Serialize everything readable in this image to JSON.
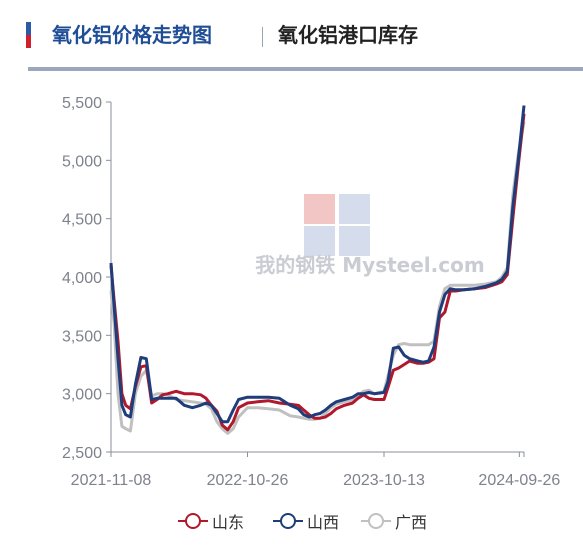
{
  "header": {
    "tab_active": "氧化铝价格走势图",
    "tab_current": "氧化铝港口库存",
    "accent_top_color": "#2b5aa6",
    "accent_bottom_color": "#d0202e",
    "active_tab_color": "#1f4e96",
    "rule_color": "#9aa7bd"
  },
  "watermark": {
    "brand": "我的钢铁 Mysteel.com"
  },
  "chart_data": {
    "type": "line",
    "x_tick_labels": [
      "2021-11-08",
      "2022-10-26",
      "2023-10-13",
      "2024-09-26"
    ],
    "x_range": [
      "2021-11-08",
      "2024-10-08"
    ],
    "y_tick_labels": [
      "2,500",
      "3,000",
      "3,500",
      "4,000",
      "4,500",
      "5,000",
      "5,500"
    ],
    "ylim": [
      2500,
      5500
    ],
    "grid": "none",
    "legend_position": "bottom-center",
    "series": [
      {
        "name": "山东",
        "color": "#b2182b",
        "points": [
          [
            "2021-11-08",
            4100
          ],
          [
            "2021-11-16",
            3800
          ],
          [
            "2021-11-26",
            3450
          ],
          [
            "2021-12-06",
            3000
          ],
          [
            "2021-12-16",
            2900
          ],
          [
            "2021-12-28",
            2870
          ],
          [
            "2022-01-10",
            3060
          ],
          [
            "2022-01-24",
            3230
          ],
          [
            "2022-02-07",
            3240
          ],
          [
            "2022-02-21",
            2920
          ],
          [
            "2022-03-07",
            2950
          ],
          [
            "2022-03-21",
            2990
          ],
          [
            "2022-04-04",
            3000
          ],
          [
            "2022-04-25",
            3020
          ],
          [
            "2022-05-16",
            3000
          ],
          [
            "2022-06-06",
            3000
          ],
          [
            "2022-06-27",
            2990
          ],
          [
            "2022-07-11",
            2960
          ],
          [
            "2022-07-25",
            2900
          ],
          [
            "2022-08-08",
            2850
          ],
          [
            "2022-08-22",
            2730
          ],
          [
            "2022-09-05",
            2690
          ],
          [
            "2022-09-19",
            2760
          ],
          [
            "2022-10-03",
            2880
          ],
          [
            "2022-10-26",
            2920
          ],
          [
            "2022-11-21",
            2930
          ],
          [
            "2022-12-19",
            2940
          ],
          [
            "2023-01-16",
            2920
          ],
          [
            "2023-02-13",
            2910
          ],
          [
            "2023-03-06",
            2900
          ],
          [
            "2023-03-20",
            2860
          ],
          [
            "2023-04-03",
            2820
          ],
          [
            "2023-04-17",
            2790
          ],
          [
            "2023-05-01",
            2790
          ],
          [
            "2023-05-15",
            2800
          ],
          [
            "2023-05-29",
            2830
          ],
          [
            "2023-06-12",
            2870
          ],
          [
            "2023-07-03",
            2900
          ],
          [
            "2023-07-24",
            2920
          ],
          [
            "2023-08-07",
            2960
          ],
          [
            "2023-08-21",
            2990
          ],
          [
            "2023-09-04",
            2960
          ],
          [
            "2023-09-18",
            2950
          ],
          [
            "2023-10-13",
            2950
          ],
          [
            "2023-10-23",
            3050
          ],
          [
            "2023-11-06",
            3200
          ],
          [
            "2023-11-20",
            3220
          ],
          [
            "2023-12-04",
            3250
          ],
          [
            "2023-12-18",
            3280
          ],
          [
            "2024-01-08",
            3260
          ],
          [
            "2024-01-22",
            3260
          ],
          [
            "2024-02-05",
            3270
          ],
          [
            "2024-02-19",
            3300
          ],
          [
            "2024-03-04",
            3650
          ],
          [
            "2024-03-18",
            3700
          ],
          [
            "2024-04-01",
            3880
          ],
          [
            "2024-04-15",
            3880
          ],
          [
            "2024-05-06",
            3890
          ],
          [
            "2024-06-03",
            3900
          ],
          [
            "2024-07-01",
            3910
          ],
          [
            "2024-07-29",
            3940
          ],
          [
            "2024-08-12",
            3960
          ],
          [
            "2024-08-26",
            4020
          ],
          [
            "2024-09-09",
            4500
          ],
          [
            "2024-09-23",
            4950
          ],
          [
            "2024-10-08",
            5400
          ]
        ]
      },
      {
        "name": "山西",
        "color": "#1f3d7a",
        "points": [
          [
            "2021-11-08",
            4120
          ],
          [
            "2021-11-16",
            3750
          ],
          [
            "2021-11-26",
            3300
          ],
          [
            "2021-12-06",
            2900
          ],
          [
            "2021-12-16",
            2820
          ],
          [
            "2021-12-28",
            2800
          ],
          [
            "2022-01-10",
            3080
          ],
          [
            "2022-01-24",
            3310
          ],
          [
            "2022-02-07",
            3300
          ],
          [
            "2022-02-21",
            2950
          ],
          [
            "2022-03-07",
            2960
          ],
          [
            "2022-03-21",
            2960
          ],
          [
            "2022-04-04",
            2960
          ],
          [
            "2022-04-25",
            2960
          ],
          [
            "2022-05-16",
            2900
          ],
          [
            "2022-06-06",
            2880
          ],
          [
            "2022-06-27",
            2900
          ],
          [
            "2022-07-11",
            2920
          ],
          [
            "2022-07-25",
            2900
          ],
          [
            "2022-08-08",
            2830
          ],
          [
            "2022-08-22",
            2760
          ],
          [
            "2022-09-05",
            2760
          ],
          [
            "2022-09-19",
            2860
          ],
          [
            "2022-10-03",
            2950
          ],
          [
            "2022-10-26",
            2970
          ],
          [
            "2022-11-21",
            2970
          ],
          [
            "2022-12-19",
            2970
          ],
          [
            "2023-01-16",
            2960
          ],
          [
            "2023-02-13",
            2900
          ],
          [
            "2023-03-06",
            2870
          ],
          [
            "2023-03-20",
            2820
          ],
          [
            "2023-04-03",
            2800
          ],
          [
            "2023-04-17",
            2820
          ],
          [
            "2023-05-01",
            2830
          ],
          [
            "2023-05-15",
            2860
          ],
          [
            "2023-05-29",
            2900
          ],
          [
            "2023-06-12",
            2930
          ],
          [
            "2023-07-03",
            2950
          ],
          [
            "2023-07-24",
            2970
          ],
          [
            "2023-08-07",
            3000
          ],
          [
            "2023-08-21",
            3000
          ],
          [
            "2023-09-04",
            3010
          ],
          [
            "2023-09-18",
            3000
          ],
          [
            "2023-10-13",
            3010
          ],
          [
            "2023-10-23",
            3100
          ],
          [
            "2023-11-06",
            3390
          ],
          [
            "2023-11-20",
            3400
          ],
          [
            "2023-12-04",
            3330
          ],
          [
            "2023-12-18",
            3300
          ],
          [
            "2024-01-08",
            3280
          ],
          [
            "2024-01-22",
            3270
          ],
          [
            "2024-02-05",
            3280
          ],
          [
            "2024-02-19",
            3400
          ],
          [
            "2024-03-04",
            3700
          ],
          [
            "2024-03-18",
            3850
          ],
          [
            "2024-04-01",
            3900
          ],
          [
            "2024-04-15",
            3890
          ],
          [
            "2024-05-06",
            3890
          ],
          [
            "2024-06-03",
            3900
          ],
          [
            "2024-07-01",
            3920
          ],
          [
            "2024-07-29",
            3950
          ],
          [
            "2024-08-12",
            3980
          ],
          [
            "2024-08-26",
            4050
          ],
          [
            "2024-09-09",
            4600
          ],
          [
            "2024-09-23",
            5000
          ],
          [
            "2024-10-08",
            5470
          ]
        ]
      },
      {
        "name": "广西",
        "color": "#c0c0c0",
        "points": [
          [
            "2021-11-08",
            3880
          ],
          [
            "2021-11-16",
            3600
          ],
          [
            "2021-11-26",
            3000
          ],
          [
            "2021-12-06",
            2720
          ],
          [
            "2021-12-16",
            2700
          ],
          [
            "2021-12-28",
            2680
          ],
          [
            "2022-01-10",
            3000
          ],
          [
            "2022-01-24",
            3150
          ],
          [
            "2022-02-07",
            3200
          ],
          [
            "2022-02-21",
            2980
          ],
          [
            "2022-03-07",
            3000
          ],
          [
            "2022-03-21",
            3000
          ],
          [
            "2022-04-04",
            2990
          ],
          [
            "2022-04-25",
            2950
          ],
          [
            "2022-05-16",
            2940
          ],
          [
            "2022-06-06",
            2930
          ],
          [
            "2022-06-27",
            2920
          ],
          [
            "2022-07-11",
            2910
          ],
          [
            "2022-07-25",
            2870
          ],
          [
            "2022-08-08",
            2760
          ],
          [
            "2022-08-22",
            2700
          ],
          [
            "2022-09-05",
            2660
          ],
          [
            "2022-09-19",
            2700
          ],
          [
            "2022-10-03",
            2800
          ],
          [
            "2022-10-26",
            2880
          ],
          [
            "2022-11-21",
            2880
          ],
          [
            "2022-12-19",
            2870
          ],
          [
            "2023-01-16",
            2860
          ],
          [
            "2023-02-13",
            2810
          ],
          [
            "2023-03-06",
            2800
          ],
          [
            "2023-03-20",
            2790
          ],
          [
            "2023-04-03",
            2780
          ],
          [
            "2023-04-17",
            2780
          ],
          [
            "2023-05-01",
            2790
          ],
          [
            "2023-05-15",
            2830
          ],
          [
            "2023-05-29",
            2880
          ],
          [
            "2023-06-12",
            2910
          ],
          [
            "2023-07-03",
            2930
          ],
          [
            "2023-07-24",
            2950
          ],
          [
            "2023-08-07",
            2980
          ],
          [
            "2023-08-21",
            3020
          ],
          [
            "2023-09-04",
            3030
          ],
          [
            "2023-09-18",
            3000
          ],
          [
            "2023-10-13",
            3020
          ],
          [
            "2023-10-23",
            3150
          ],
          [
            "2023-11-06",
            3330
          ],
          [
            "2023-11-20",
            3420
          ],
          [
            "2023-12-04",
            3430
          ],
          [
            "2023-12-18",
            3420
          ],
          [
            "2024-01-08",
            3420
          ],
          [
            "2024-01-22",
            3420
          ],
          [
            "2024-02-05",
            3420
          ],
          [
            "2024-02-19",
            3450
          ],
          [
            "2024-03-04",
            3750
          ],
          [
            "2024-03-18",
            3900
          ],
          [
            "2024-04-01",
            3930
          ],
          [
            "2024-04-15",
            3930
          ],
          [
            "2024-05-06",
            3930
          ],
          [
            "2024-06-03",
            3930
          ],
          [
            "2024-07-01",
            3940
          ],
          [
            "2024-07-29",
            3960
          ],
          [
            "2024-08-12",
            4000
          ],
          [
            "2024-08-26",
            4080
          ],
          [
            "2024-09-09",
            4700
          ],
          [
            "2024-09-23",
            5050
          ],
          [
            "2024-10-08",
            5330
          ]
        ]
      }
    ]
  }
}
